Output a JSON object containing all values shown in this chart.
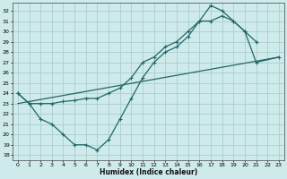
{
  "xlabel": "Humidex (Indice chaleur)",
  "bg_color": "#ceeaea",
  "grid_color": "#aacece",
  "line_color": "#226666",
  "xlim": [
    -0.5,
    23.5
  ],
  "ylim": [
    17.5,
    32.8
  ],
  "yticks": [
    18,
    19,
    20,
    21,
    22,
    23,
    24,
    25,
    26,
    27,
    28,
    29,
    30,
    31,
    32
  ],
  "xticks": [
    0,
    1,
    2,
    3,
    4,
    5,
    6,
    7,
    8,
    9,
    10,
    11,
    12,
    13,
    14,
    15,
    16,
    17,
    18,
    19,
    20,
    21,
    22,
    23
  ],
  "series1_x": [
    0,
    1,
    2,
    3,
    4,
    5,
    6,
    7,
    8,
    9,
    10,
    11,
    12,
    13,
    14,
    15,
    16,
    17,
    18,
    19,
    20,
    21
  ],
  "series1_y": [
    24.0,
    23.0,
    21.5,
    21.0,
    20.0,
    19.0,
    19.0,
    18.5,
    19.5,
    21.5,
    23.5,
    25.5,
    27.0,
    28.0,
    28.5,
    29.5,
    31.0,
    32.5,
    32.0,
    31.0,
    30.0,
    29.0
  ],
  "series2_x": [
    0,
    1,
    2,
    3,
    4,
    5,
    6,
    7,
    8,
    9,
    10,
    11,
    12,
    13,
    14,
    15,
    16,
    17,
    18,
    19,
    20,
    21,
    23
  ],
  "series2_y": [
    24.0,
    23.0,
    23.0,
    23.0,
    23.2,
    23.3,
    23.5,
    23.5,
    24.0,
    24.5,
    25.5,
    27.0,
    27.5,
    28.5,
    29.0,
    30.0,
    31.0,
    31.0,
    31.5,
    31.0,
    30.0,
    27.0,
    27.5
  ],
  "series3_x": [
    0,
    23
  ],
  "series3_y": [
    23.0,
    27.5
  ]
}
